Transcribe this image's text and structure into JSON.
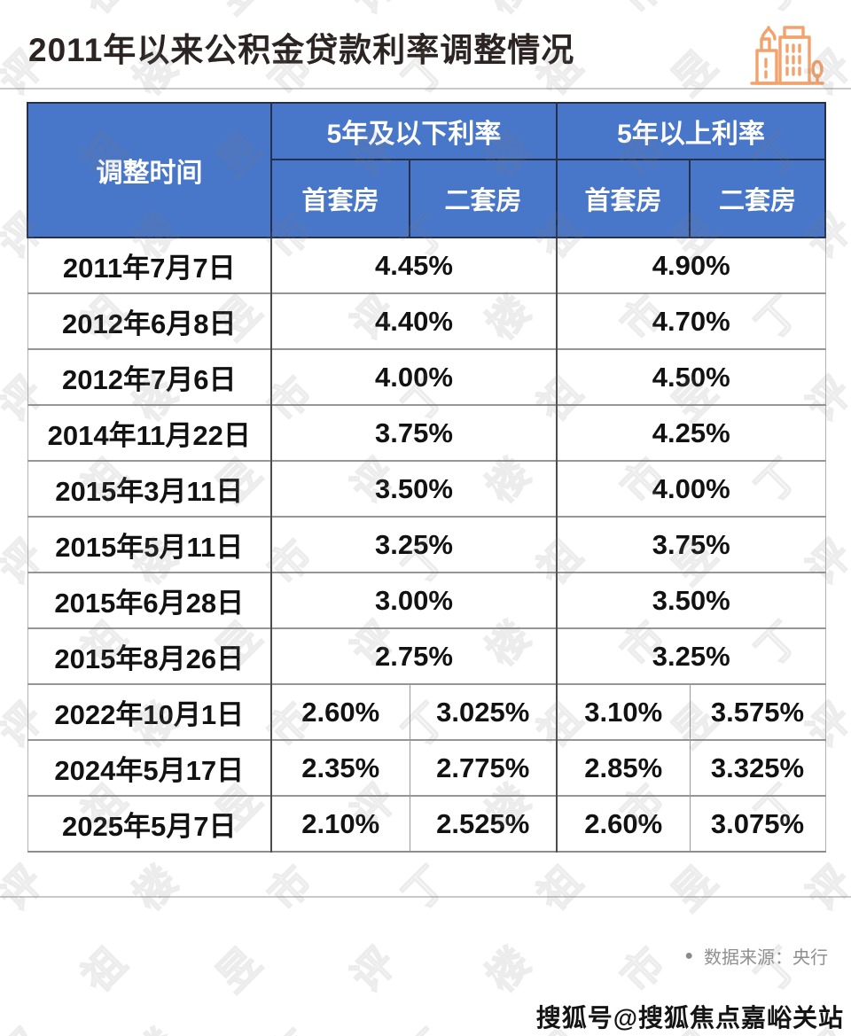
{
  "page": {
    "title": "2011年以来公积金贷款利率调整情况",
    "title_color": "#2b2422",
    "header_blue": "#4876C8",
    "accent_orange": "#F2A36C"
  },
  "table_header": {
    "time": "调整时间",
    "group_below5": "5年及以下利率",
    "group_above5": "5年以上利率",
    "sub_first": "首套房",
    "sub_second": "二套房"
  },
  "footer": {
    "bullet_icon": "●",
    "source_label": "数据来源：央行"
  },
  "watermarks": {
    "bottom_right": "搜狐号@搜狐焦点嘉峪关站",
    "pattern_chars": "丁祖昱评楼市"
  },
  "chart_data": {
    "type": "table",
    "title": "2011年以来公积金贷款利率调整情况",
    "columns": [
      "调整时间",
      "5年及以下利率-首套房",
      "5年及以下利率-二套房",
      "5年以上利率-首套房",
      "5年以上利率-二套房"
    ],
    "rows": [
      {
        "date": "2011年7月7日",
        "below5": "4.45%",
        "above5": "4.90%"
      },
      {
        "date": "2012年6月8日",
        "below5": "4.40%",
        "above5": "4.70%"
      },
      {
        "date": "2012年7月6日",
        "below5": "4.00%",
        "above5": "4.50%"
      },
      {
        "date": "2014年11月22日",
        "below5": "3.75%",
        "above5": "4.25%"
      },
      {
        "date": "2015年3月11日",
        "below5": "3.50%",
        "above5": "4.00%"
      },
      {
        "date": "2015年5月11日",
        "below5": "3.25%",
        "above5": "3.75%"
      },
      {
        "date": "2015年6月28日",
        "below5": "3.00%",
        "above5": "3.50%"
      },
      {
        "date": "2015年8月26日",
        "below5": "2.75%",
        "above5": "3.25%"
      },
      {
        "date": "2022年10月1日",
        "below5_first": "2.60%",
        "below5_second": "3.025%",
        "above5_first": "3.10%",
        "above5_second": "3.575%"
      },
      {
        "date": "2024年5月17日",
        "below5_first": "2.35%",
        "below5_second": "2.775%",
        "above5_first": "2.85%",
        "above5_second": "3.325%"
      },
      {
        "date": "2025年5月7日",
        "below5_first": "2.10%",
        "below5_second": "2.525%",
        "above5_first": "2.60%",
        "above5_second": "3.075%"
      }
    ],
    "source": "央行",
    "layout_hints": {
      "merged_rows_note": "2011-2015 rows show one rate spanning 首套房/二套房; 2022-2025 rows split into four cells",
      "grid": "on"
    }
  }
}
